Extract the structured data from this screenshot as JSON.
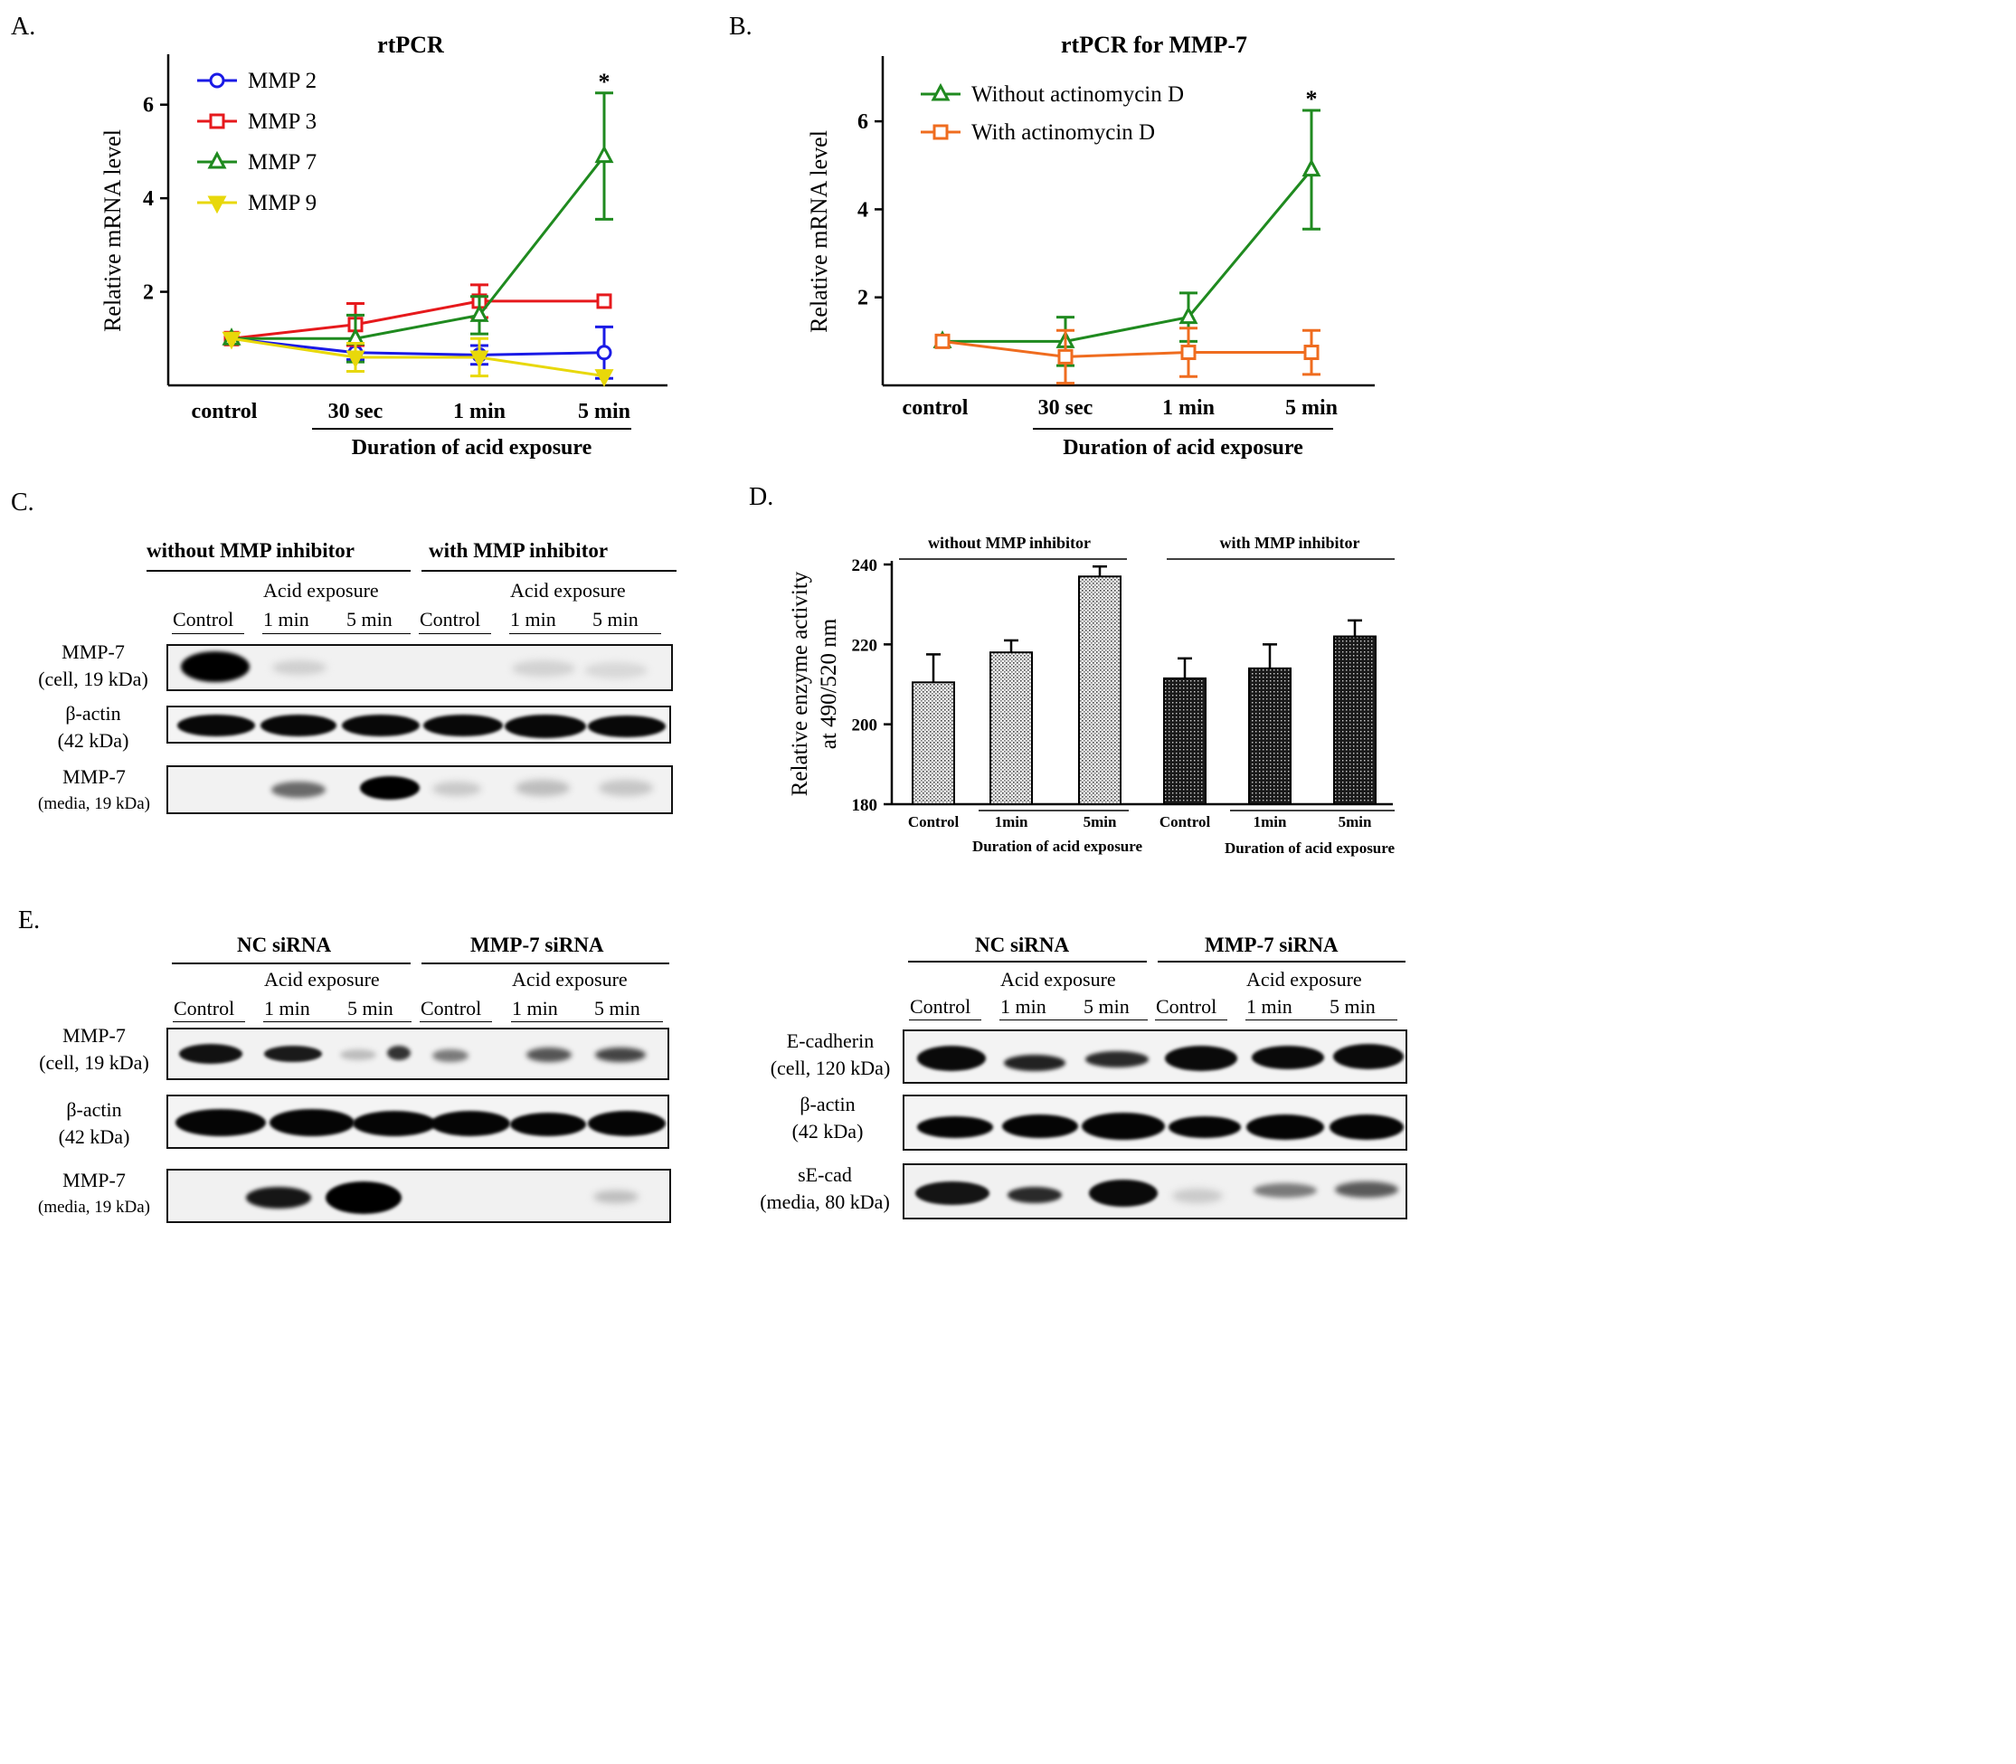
{
  "panels": {
    "A": "A.",
    "B": "B.",
    "C": "C.",
    "D": "D.",
    "E": "E."
  },
  "colors": {
    "mmp2": "#1a1ae6",
    "mmp3": "#e6191c",
    "mmp7": "#1f8a1f",
    "mmp9": "#e8d80a",
    "without_act": "#1f8a1f",
    "with_act": "#ef6c1f"
  },
  "chart_data": [
    {
      "id": "A",
      "type": "line",
      "title": "rtPCR",
      "xlabel": "Duration of acid exposure",
      "ylabel": "Relative mRNA level",
      "categories": [
        "control",
        "30 sec",
        "1 min",
        "5 min"
      ],
      "ylim": [
        0,
        7
      ],
      "yticks": [
        2,
        4,
        6
      ],
      "annotation": "*",
      "series": [
        {
          "name": "MMP 2",
          "marker": "circle",
          "values": [
            1.0,
            0.7,
            0.65,
            0.7
          ],
          "errors": [
            0,
            0.15,
            0.2,
            0.55
          ]
        },
        {
          "name": "MMP 3",
          "marker": "square",
          "values": [
            1.0,
            1.3,
            1.8,
            1.8
          ],
          "errors": [
            0,
            0.45,
            0.35,
            0
          ]
        },
        {
          "name": "MMP 7",
          "marker": "triangle",
          "values": [
            1.0,
            1.0,
            1.5,
            4.9
          ],
          "errors": [
            0,
            0.5,
            0.4,
            1.35
          ]
        },
        {
          "name": "MMP 9",
          "marker": "triangle-down",
          "values": [
            1.0,
            0.6,
            0.6,
            0.2
          ],
          "errors": [
            0,
            0.3,
            0.4,
            0
          ]
        }
      ]
    },
    {
      "id": "B",
      "type": "line",
      "title": "rtPCR for MMP-7",
      "xlabel": "Duration of acid exposure",
      "ylabel": "Relative mRNA level",
      "categories": [
        "control",
        "30 sec",
        "1 min",
        "5 min"
      ],
      "ylim": [
        0,
        7.4
      ],
      "yticks": [
        2,
        4,
        6
      ],
      "annotation": "*",
      "series": [
        {
          "name": "Without actinomycin D",
          "marker": "triangle",
          "values": [
            1.0,
            1.0,
            1.55,
            4.9
          ],
          "errors": [
            0,
            0.55,
            0.55,
            1.35
          ]
        },
        {
          "name": "With actinomycin D",
          "marker": "square",
          "values": [
            1.0,
            0.65,
            0.75,
            0.75
          ],
          "errors": [
            0,
            0.6,
            0.55,
            0.5
          ]
        }
      ]
    },
    {
      "id": "D",
      "type": "bar",
      "ylabel": "Relative enzyme activity at 490/520 nm",
      "ylabel_line1": "Relative enzyme activity",
      "ylabel_line2": "at 490/520 nm",
      "ylim": [
        180,
        240
      ],
      "yticks": [
        180,
        200,
        220,
        240
      ],
      "categories": [
        "Control",
        "1min",
        "5min",
        "Control",
        "1min",
        "5min"
      ],
      "group_labels": [
        "without MMP inhibitor",
        "with MMP inhibitor"
      ],
      "xlabel": "Duration of acid exposure",
      "values": [
        210.5,
        218,
        237,
        211.5,
        214,
        222
      ],
      "errors": [
        7,
        3,
        2.5,
        5,
        6,
        4
      ]
    }
  ],
  "blots": {
    "C": {
      "group1": "without MMP inhibitor",
      "group2": "with MMP inhibitor",
      "acid": "Acid exposure",
      "lanes": [
        "Control",
        "1 min",
        "5 min",
        "Control",
        "1 min",
        "5 min"
      ],
      "rows": [
        {
          "name": "MMP-7",
          "detail": "(cell, 19 kDa)"
        },
        {
          "name": "β-actin",
          "detail": "(42 kDa)"
        },
        {
          "name": "MMP-7",
          "detail": "(media, 19 kDa)"
        }
      ]
    },
    "E1": {
      "group1": "NC siRNA",
      "group2": "MMP-7 siRNA",
      "acid": "Acid exposure",
      "lanes": [
        "Control",
        "1 min",
        "5 min",
        "Control",
        "1 min",
        "5 min"
      ],
      "rows": [
        {
          "name": "MMP-7",
          "detail": "(cell, 19 kDa)"
        },
        {
          "name": "β-actin",
          "detail": "(42 kDa)"
        },
        {
          "name": "MMP-7",
          "detail": "(media, 19 kDa)"
        }
      ]
    },
    "E2": {
      "group1": "NC siRNA",
      "group2": "MMP-7 siRNA",
      "acid": "Acid exposure",
      "lanes": [
        "Control",
        "1 min",
        "5 min",
        "Control",
        "1 min",
        "5 min"
      ],
      "rows": [
        {
          "name": "E-cadherin",
          "detail": "(cell, 120 kDa)"
        },
        {
          "name": "β-actin",
          "detail": "(42 kDa)"
        },
        {
          "name": "sE-cad",
          "detail": "(media, 80 kDa)"
        }
      ]
    }
  }
}
